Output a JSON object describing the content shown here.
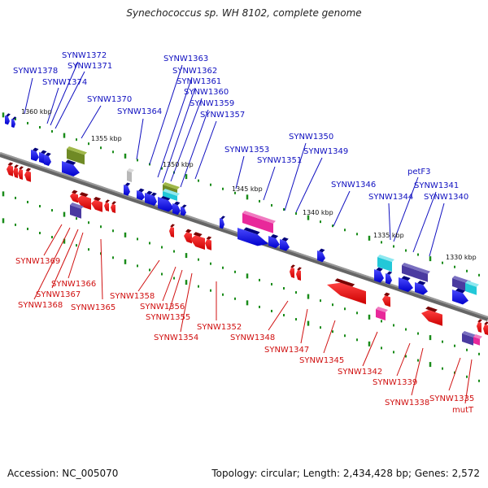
{
  "title": "Synechococcus sp. WH 8102, complete genome",
  "footer": {
    "accession": "Accession: NC_005070",
    "summary": "Topology: circular; Length: 2,434,428 bp; Genes: 2,572"
  },
  "colors": {
    "forward_label": "#1010c0",
    "reverse_label": "#d01010",
    "backbone": "#8a8a8a",
    "tick": "#1a8c1a"
  },
  "axis_labels": [
    {
      "label": "1360 kbp"
    },
    {
      "label": "1355 kbp"
    },
    {
      "label": "1350 kbp"
    },
    {
      "label": "1345 kbp"
    },
    {
      "label": "1340 kbp"
    },
    {
      "label": "1335 kbp"
    },
    {
      "label": "1330 kbp"
    }
  ],
  "forward_genes": [
    "SYNW1378",
    "SYNW1372",
    "SYNW1371",
    "SYNW1374",
    "SYNW1370",
    "SYNW1364",
    "SYNW1363",
    "SYNW1362",
    "SYNW1361",
    "SYNW1360",
    "SYNW1359",
    "SYNW1357",
    "SYNW1353",
    "SYNW1351",
    "SYNW1350",
    "SYNW1349",
    "SYNW1346",
    "SYNW1344",
    "petF3",
    "SYNW1341",
    "SYNW1340"
  ],
  "reverse_genes": [
    "SYNW1369",
    "SYNW1366",
    "SYNW1367",
    "SYNW1368",
    "SYNW1365",
    "SYNW1358",
    "SYNW1356",
    "SYNW1355",
    "SYNW1354",
    "SYNW1352",
    "SYNW1348",
    "SYNW1347",
    "SYNW1345",
    "SYNW1342",
    "SYNW1339",
    "SYNW1338",
    "SYNW1335",
    "mutT"
  ]
}
